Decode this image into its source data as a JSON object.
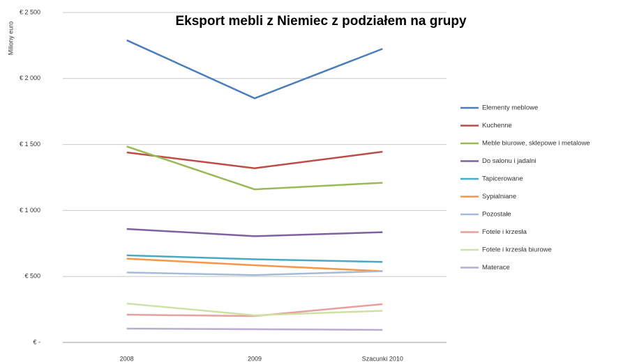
{
  "chart_data": {
    "type": "line",
    "title": "Eksport mebli z Niemiec z podziałem na grupy",
    "y_label": "Miliony euro",
    "categories": [
      "2008",
      "2009",
      "Szacunki 2010"
    ],
    "ylim": [
      0,
      2500
    ],
    "yticks": [
      {
        "value": 0,
        "label": "€ -"
      },
      {
        "value": 500,
        "label": "€ 500"
      },
      {
        "value": 1000,
        "label": "€ 1 000"
      },
      {
        "value": 1500,
        "label": "€ 1 500"
      },
      {
        "value": 2000,
        "label": "€ 2 000"
      },
      {
        "value": 2500,
        "label": "€ 2 500"
      }
    ],
    "grid": true,
    "legend": "right",
    "series": [
      {
        "name": "Elementy meblowe",
        "color": "#4a7ebb",
        "values": [
          2290,
          1850,
          2225
        ]
      },
      {
        "name": "Kuchenne",
        "color": "#be4b48",
        "values": [
          1440,
          1320,
          1445
        ]
      },
      {
        "name": "Meble biurowe, sklepowe i metalowe",
        "color": "#98b954",
        "values": [
          1485,
          1160,
          1210
        ]
      },
      {
        "name": "Do salonu i jadalni",
        "color": "#7d60a0",
        "values": [
          860,
          805,
          835
        ]
      },
      {
        "name": "Tapicerowane",
        "color": "#46aac5",
        "values": [
          660,
          630,
          610
        ]
      },
      {
        "name": "Sypialniane",
        "color": "#f79646",
        "values": [
          635,
          585,
          540
        ]
      },
      {
        "name": "Pozostałe",
        "color": "#a5bbd8",
        "values": [
          530,
          510,
          540
        ]
      },
      {
        "name": "Fotele i krzesła",
        "color": "#e6a09f",
        "values": [
          210,
          200,
          290
        ]
      },
      {
        "name": "Fotele i krzesła biurowe",
        "color": "#cfe0a3",
        "values": [
          295,
          205,
          240
        ]
      },
      {
        "name": "Materace",
        "color": "#b8acd0",
        "values": [
          105,
          100,
          95
        ]
      }
    ]
  }
}
